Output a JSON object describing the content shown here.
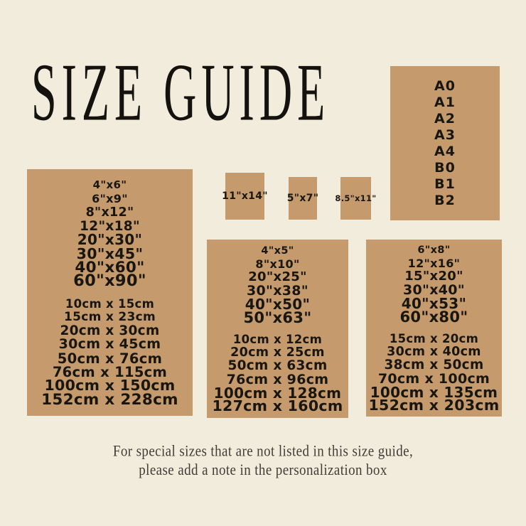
{
  "title": "SIZE GUIDE",
  "colors": {
    "background": "#f2ecdd",
    "panel": "#c59b6d",
    "text": "#191610"
  },
  "a_series_panel": {
    "items": [
      "A0",
      "A1",
      "A2",
      "A3",
      "A4",
      "B0",
      "B1",
      "B2"
    ]
  },
  "small_panels": {
    "panel1_label": "11\"x14\"",
    "panel2_label": "5\"x7\"",
    "panel3_label": "8.5\"x11\""
  },
  "left_panel": {
    "inch_sizes": [
      "4\"x6\"",
      "6\"x9\"",
      "8\"x12\"",
      "12\"x18\"",
      "20\"x30\"",
      "30\"x45\"",
      "40\"x60\"",
      "60\"x90\""
    ],
    "cm_sizes": [
      "10cm x 15cm",
      "15cm x 23cm",
      "20cm x 30cm",
      "30cm x 45cm",
      "50cm x 76cm",
      "76cm x 115cm",
      "100cm x 150cm",
      "152cm x 228cm"
    ]
  },
  "middle_panel": {
    "inch_sizes": [
      "4\"x5\"",
      "8\"x10\"",
      "20\"x25\"",
      "30\"x38\"",
      "40\"x50\"",
      "50\"x63\""
    ],
    "cm_sizes": [
      "10cm x 12cm",
      "20cm x 25cm",
      "50cm x 63cm",
      "76cm x 96cm",
      "100cm x 128cm",
      "127cm x 160cm"
    ]
  },
  "right_panel": {
    "inch_sizes": [
      "6\"x8\"",
      "12\"x16\"",
      "15\"x20\"",
      "30\"x40\"",
      "40\"x53\"",
      "60\"x80\""
    ],
    "cm_sizes": [
      "15cm x 20cm",
      "30cm x 40cm",
      "38cm x 50cm",
      "70cm x 100cm",
      "100cm x 135cm",
      "152cm x 203cm"
    ]
  },
  "footer": {
    "line1": "For special sizes that are not listed in this size guide,",
    "line2": "please add a note in the personalization box"
  }
}
